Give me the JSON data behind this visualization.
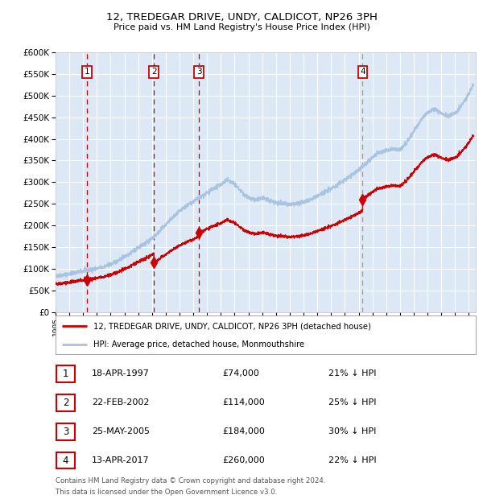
{
  "title": "12, TREDEGAR DRIVE, UNDY, CALDICOT, NP26 3PH",
  "subtitle": "Price paid vs. HM Land Registry's House Price Index (HPI)",
  "legend_line1": "12, TREDEGAR DRIVE, UNDY, CALDICOT, NP26 3PH (detached house)",
  "legend_line2": "HPI: Average price, detached house, Monmouthshire",
  "footer_line1": "Contains HM Land Registry data © Crown copyright and database right 2024.",
  "footer_line2": "This data is licensed under the Open Government Licence v3.0.",
  "transactions": [
    {
      "num": 1,
      "date": "18-APR-1997",
      "price": 74000,
      "pct": "21% ↓ HPI",
      "date_val": 1997.29
    },
    {
      "num": 2,
      "date": "22-FEB-2002",
      "price": 114000,
      "pct": "25% ↓ HPI",
      "date_val": 2002.14
    },
    {
      "num": 3,
      "date": "25-MAY-2005",
      "price": 184000,
      "pct": "30% ↓ HPI",
      "date_val": 2005.4
    },
    {
      "num": 4,
      "date": "13-APR-2017",
      "price": 260000,
      "pct": "22% ↓ HPI",
      "date_val": 2017.29
    }
  ],
  "xmin": 1995.0,
  "xmax": 2025.5,
  "ymin": 0,
  "ymax": 600000,
  "yticks": [
    0,
    50000,
    100000,
    150000,
    200000,
    250000,
    300000,
    350000,
    400000,
    450000,
    500000,
    550000,
    600000
  ],
  "xticks": [
    1995,
    1996,
    1997,
    1998,
    1999,
    2000,
    2001,
    2002,
    2003,
    2004,
    2005,
    2006,
    2007,
    2008,
    2009,
    2010,
    2011,
    2012,
    2013,
    2014,
    2015,
    2016,
    2017,
    2018,
    2019,
    2020,
    2021,
    2022,
    2023,
    2024,
    2025
  ],
  "hpi_color": "#a8c4e0",
  "price_color": "#cc0000",
  "vline_color_sold": "#cc0000",
  "vline_color_last": "#999999",
  "plot_bg": "#dce8f5",
  "grid_color": "#ffffff",
  "marker_color": "#cc0000"
}
